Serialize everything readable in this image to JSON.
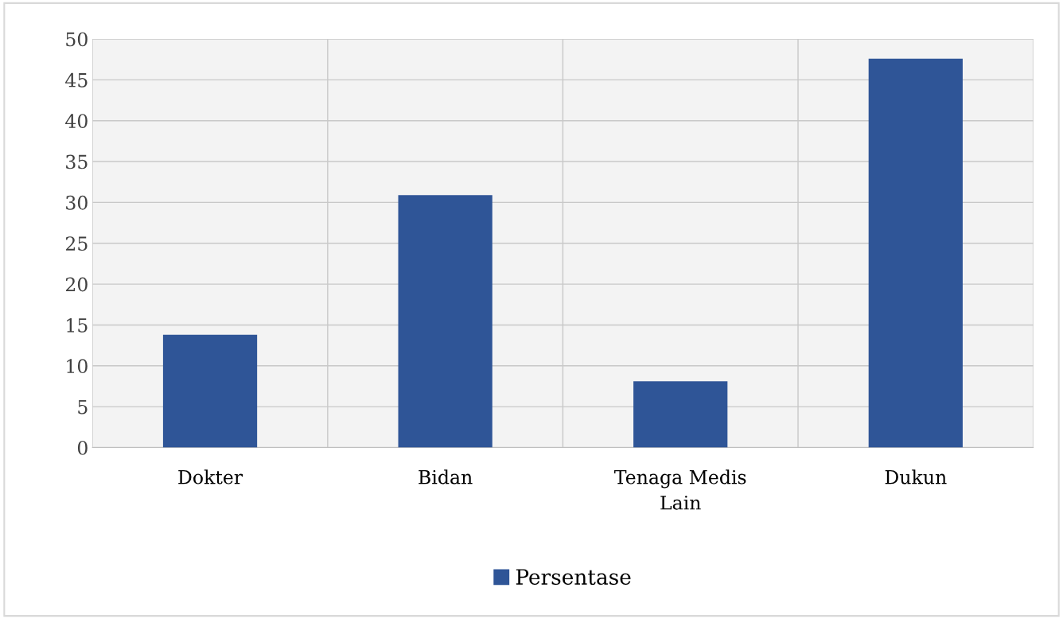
{
  "chart_data": {
    "type": "bar",
    "categories": [
      "Dokter",
      "Bidan",
      "Tenaga Medis\nLain",
      "Dukun"
    ],
    "series": [
      {
        "name": "Persentase",
        "color": "#2f5597",
        "values": [
          13.8,
          30.9,
          8.1,
          47.6
        ]
      }
    ],
    "ylim": [
      0,
      50
    ],
    "yticks": [
      0,
      5,
      10,
      15,
      20,
      25,
      30,
      35,
      40,
      45,
      50
    ],
    "grid": true,
    "legend": "bottom"
  }
}
